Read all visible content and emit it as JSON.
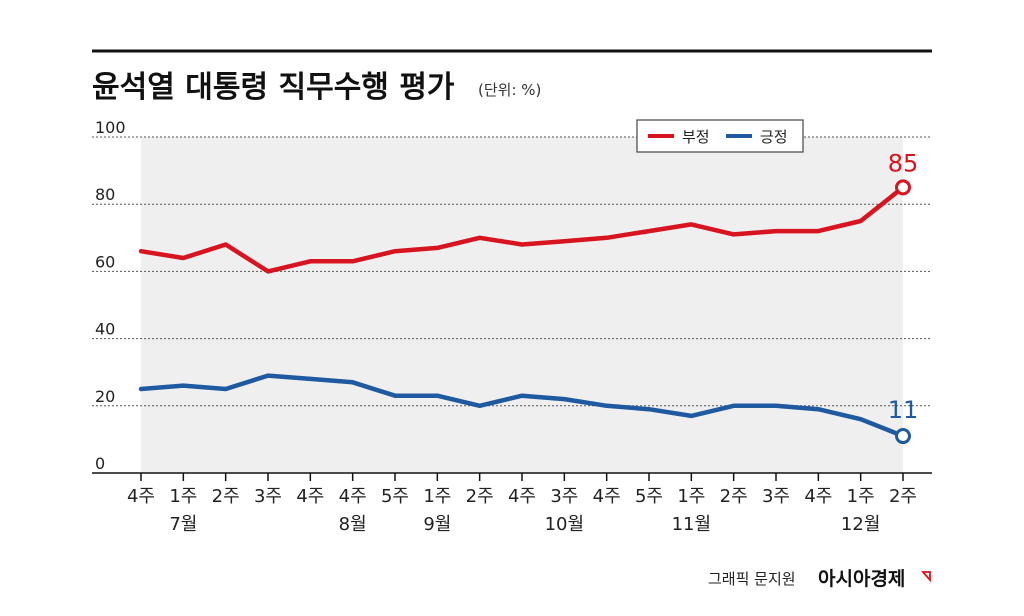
{
  "chart_data": {
    "type": "line",
    "title": "윤석열 대통령 직무수행 평가",
    "unit": "(단위: %)",
    "ylim": [
      0,
      100
    ],
    "yticks": [
      "100",
      "80",
      "60",
      "40",
      "20",
      "0"
    ],
    "categories": [
      "4주",
      "1주",
      "2주",
      "3주",
      "4주",
      "4주",
      "5주",
      "1주",
      "2주",
      "4주",
      "3주",
      "4주",
      "5주",
      "1주",
      "2주",
      "3주",
      "4주",
      "1주",
      "2주"
    ],
    "months": [
      {
        "label": "7월",
        "index": 1
      },
      {
        "label": "8월",
        "index": 5
      },
      {
        "label": "9월",
        "index": 7
      },
      {
        "label": "10월",
        "index": 10
      },
      {
        "label": "11월",
        "index": 13
      },
      {
        "label": "12월",
        "index": 17
      }
    ],
    "series": [
      {
        "name": "부정",
        "color": "#d7141f",
        "values": [
          66,
          64,
          68,
          60,
          63,
          63,
          66,
          67,
          70,
          68,
          69,
          70,
          72,
          74,
          71,
          72,
          72,
          75,
          85
        ],
        "end_label": "85"
      },
      {
        "name": "긍정",
        "color": "#1f5aa0",
        "values": [
          25,
          26,
          25,
          29,
          28,
          27,
          23,
          23,
          20,
          23,
          22,
          20,
          19,
          17,
          20,
          20,
          19,
          16,
          11
        ],
        "end_label": "11"
      }
    ],
    "legend_position": "top-right",
    "grid": true
  },
  "credit": {
    "text": "그래픽 문지원",
    "brand": "아시아경제"
  }
}
